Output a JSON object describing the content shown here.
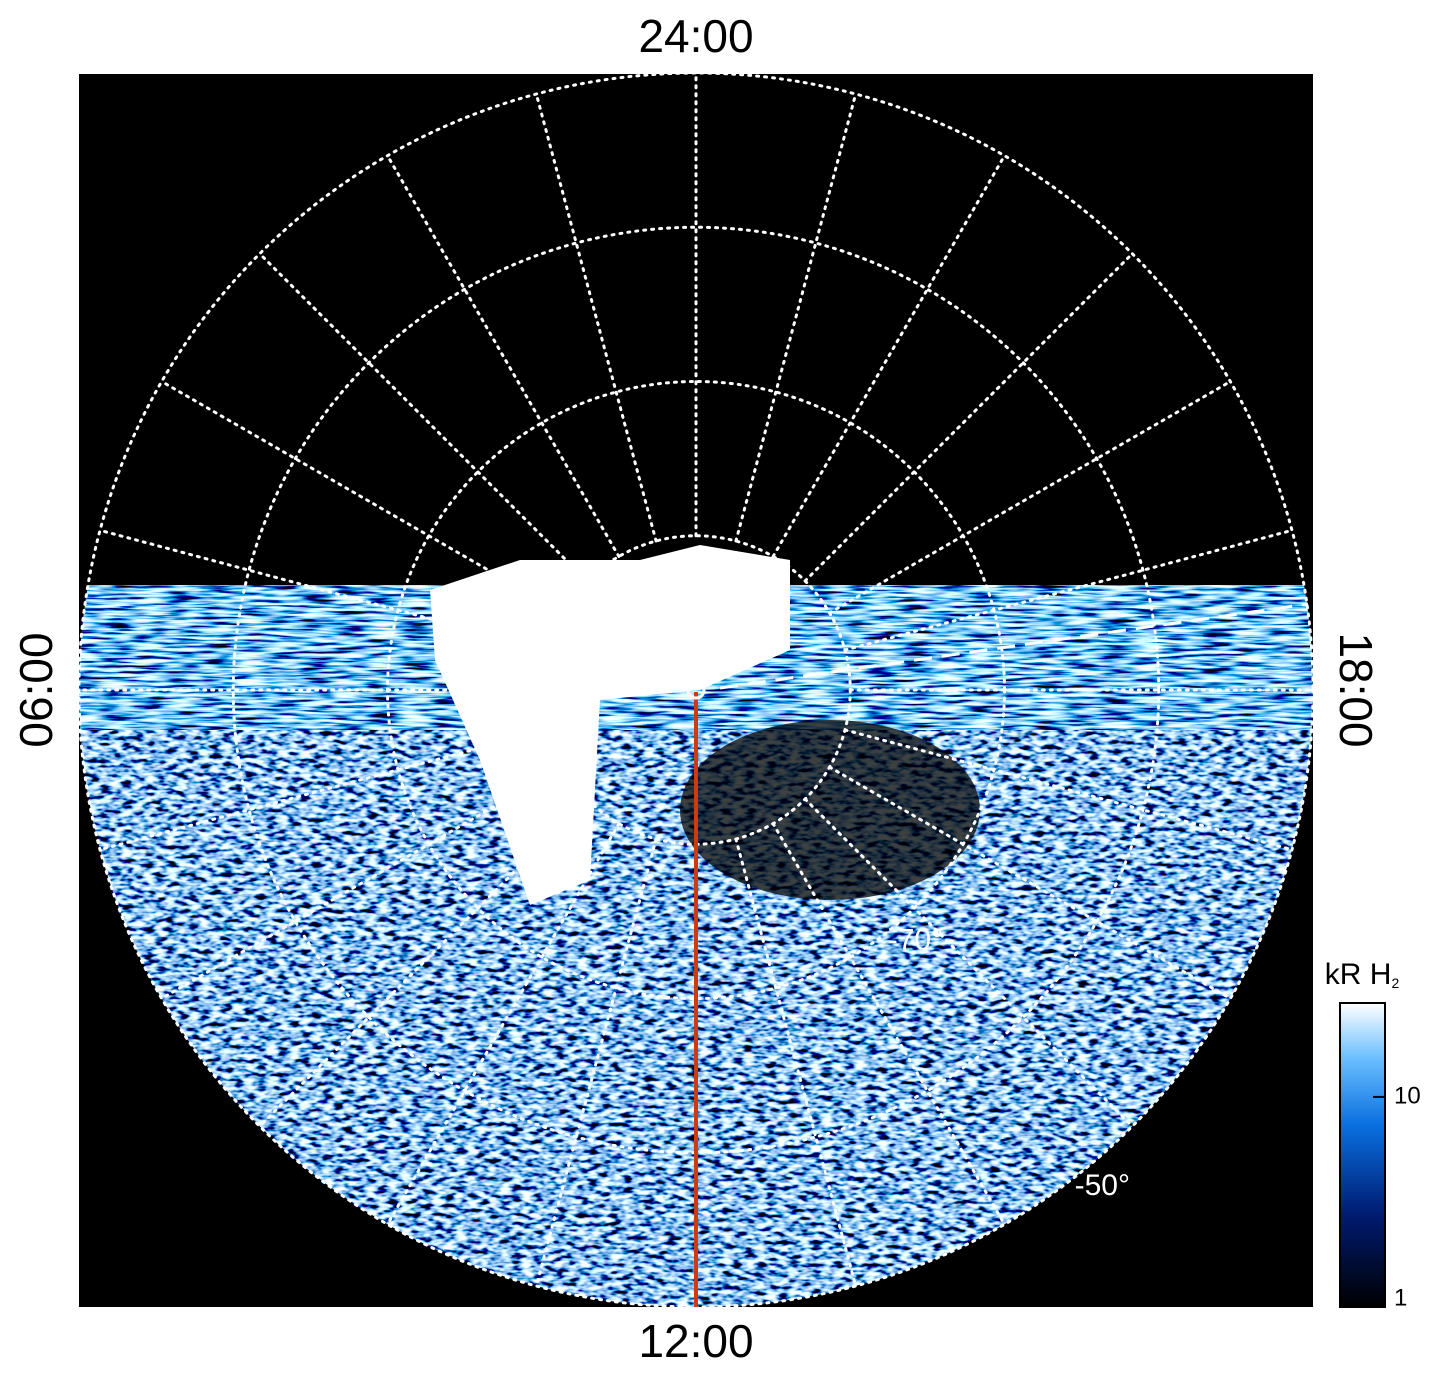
{
  "chart_data": {
    "type": "polar-map",
    "local_time_labels": {
      "top": "24:00",
      "left": "06:00",
      "bottom": "12:00",
      "right": "18:00"
    },
    "rlim": [
      -90,
      -50
    ],
    "latitude_circles": [
      -80,
      -70,
      -60,
      -50
    ],
    "latitude_labels": [
      {
        "value": -70,
        "label": "-70°"
      },
      {
        "value": -50,
        "label": "-50°"
      }
    ],
    "colorbar": {
      "title": "kR H",
      "title_subscript": "2",
      "scale": "log",
      "lim": [
        1,
        28
      ],
      "ticks": [
        1,
        10
      ]
    }
  }
}
